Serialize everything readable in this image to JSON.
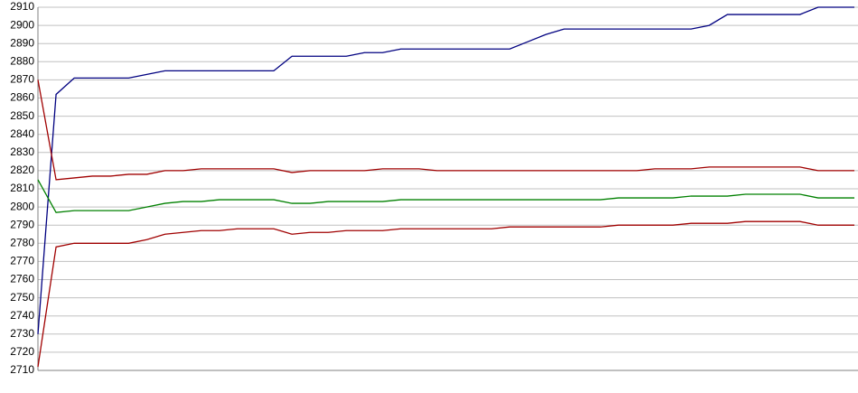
{
  "chart_data": {
    "type": "line",
    "categories": [
      null,
      null,
      null,
      null,
      null,
      null,
      null,
      null,
      null,
      null,
      null,
      null,
      null,
      null,
      null,
      null,
      null,
      null,
      null,
      null,
      null,
      null,
      null,
      null,
      null,
      null,
      null,
      null,
      null,
      null,
      null,
      null,
      null,
      null,
      null,
      null,
      null,
      null,
      null,
      null,
      null,
      null,
      null,
      null,
      null,
      null
    ],
    "series": [
      {
        "color": "#000080",
        "values": [
          2730,
          2862,
          2871,
          2871,
          2871,
          2871,
          2873,
          2875,
          2875,
          2875,
          2875,
          2875,
          2875,
          2875,
          2883,
          2883,
          2883,
          2883,
          2885,
          2885,
          2887,
          2887,
          2887,
          2887,
          2887,
          2887,
          2887,
          2891,
          2895,
          2898,
          2898,
          2898,
          2898,
          2898,
          2898,
          2898,
          2898,
          2900,
          2906,
          2906,
          2906,
          2906,
          2906,
          2910,
          2910,
          2910
        ]
      },
      {
        "color": "#a00000",
        "values": [
          2870,
          2815,
          2816,
          2817,
          2817,
          2818,
          2818,
          2820,
          2820,
          2821,
          2821,
          2821,
          2821,
          2821,
          2819,
          2820,
          2820,
          2820,
          2820,
          2821,
          2821,
          2821,
          2820,
          2820,
          2820,
          2820,
          2820,
          2820,
          2820,
          2820,
          2820,
          2820,
          2820,
          2820,
          2821,
          2821,
          2821,
          2822,
          2822,
          2822,
          2822,
          2822,
          2822,
          2820,
          2820,
          2820
        ]
      },
      {
        "color": "#008000",
        "values": [
          2815,
          2797,
          2798,
          2798,
          2798,
          2798,
          2800,
          2802,
          2803,
          2803,
          2804,
          2804,
          2804,
          2804,
          2802,
          2802,
          2803,
          2803,
          2803,
          2803,
          2804,
          2804,
          2804,
          2804,
          2804,
          2804,
          2804,
          2804,
          2804,
          2804,
          2804,
          2804,
          2805,
          2805,
          2805,
          2805,
          2806,
          2806,
          2806,
          2807,
          2807,
          2807,
          2807,
          2805,
          2805,
          2805
        ]
      },
      {
        "color": "#a00000",
        "values": [
          2712,
          2778,
          2780,
          2780,
          2780,
          2780,
          2782,
          2785,
          2786,
          2787,
          2787,
          2788,
          2788,
          2788,
          2785,
          2786,
          2786,
          2787,
          2787,
          2787,
          2788,
          2788,
          2788,
          2788,
          2788,
          2788,
          2789,
          2789,
          2789,
          2789,
          2789,
          2789,
          2790,
          2790,
          2790,
          2790,
          2791,
          2791,
          2791,
          2792,
          2792,
          2792,
          2792,
          2790,
          2790,
          2790
        ]
      }
    ],
    "ylim": [
      2710,
      2910
    ],
    "yticks": [
      2710,
      2720,
      2730,
      2740,
      2750,
      2760,
      2770,
      2780,
      2790,
      2800,
      2810,
      2820,
      2830,
      2840,
      2850,
      2860,
      2870,
      2880,
      2890,
      2900,
      2910
    ],
    "grid": true
  }
}
